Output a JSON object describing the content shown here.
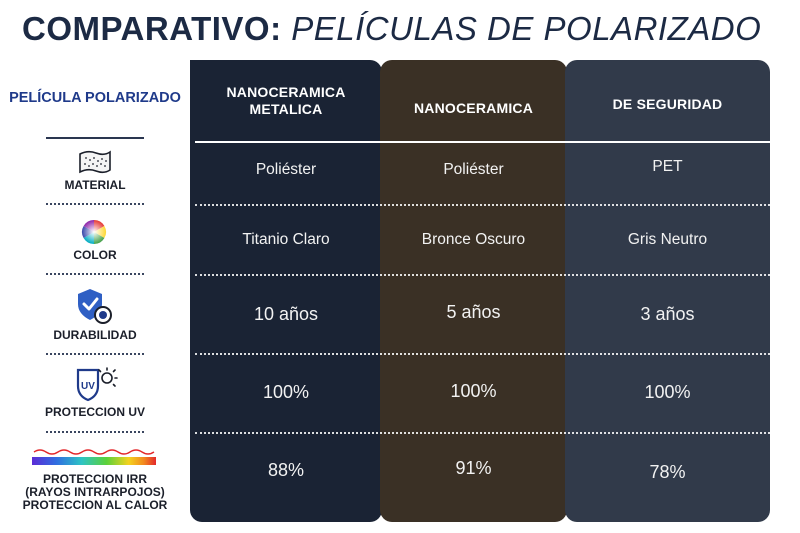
{
  "title": {
    "bold": "COMPARATIVO:",
    "italic": "PELÍCULAS DE POLARIZADO"
  },
  "label_header": "PELÍCULA POLARIZADO",
  "rows": [
    {
      "label": "MATERIAL",
      "icon": "fabric-icon"
    },
    {
      "label": "COLOR",
      "icon": "color-wheel-icon"
    },
    {
      "label": "DURABILIDAD",
      "icon": "shield-check-icon"
    },
    {
      "label": "PROTECCION UV",
      "icon": "uv-sun-shield-icon"
    },
    {
      "label": "PROTECCION IRR (RAYOS INTRARPOJOS) PROTECCION AL CALOR",
      "icon": "rainbow-heat-wave-icon",
      "label_lines": [
        "PROTECCION IRR",
        "(RAYOS INTRARPOJOS)",
        "PROTECCION AL CALOR"
      ]
    }
  ],
  "columns": [
    {
      "name": "NANOCERAMICA METALICA",
      "name_lines": [
        "NANOCERAMICA",
        "METALICA"
      ],
      "color": "#1a2334",
      "values": [
        "Poliéster",
        "Titanio Claro",
        "10 años",
        "100%",
        "88%"
      ]
    },
    {
      "name": "NANOCERAMICA",
      "color": "#3a3025",
      "values": [
        "Poliéster",
        "Bronce Oscuro",
        "5 años",
        "100%",
        "91%"
      ]
    },
    {
      "name": "DE SEGURIDAD",
      "color": "#313a4a",
      "values": [
        "PET",
        "Gris Neutro",
        "3 años",
        "100%",
        "78%"
      ]
    }
  ]
}
